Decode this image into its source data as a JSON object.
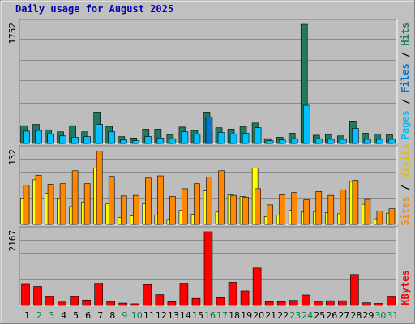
{
  "title": "Daily usage for August 2025",
  "colors": {
    "background": "#c0c0c0",
    "panel": "#bdbdbd",
    "grid": "#8a8a8a",
    "hits": "#1f7a5f",
    "files": "#00c0ff",
    "pages": "#0077cc",
    "visits": "#ffff00",
    "sites": "#ff8800",
    "kbytes": "#ff0000",
    "title": "#0000aa",
    "weekend_label": "#008040"
  },
  "chart_data": [
    {
      "type": "bar",
      "name": "hits-files-pages",
      "ylabel": "1752",
      "ymax": 1752,
      "legend": [
        "Pages",
        "Files",
        "Hits"
      ],
      "categories": [
        "1",
        "2",
        "3",
        "4",
        "5",
        "6",
        "7",
        "8",
        "9",
        "10",
        "11",
        "12",
        "13",
        "14",
        "15",
        "16",
        "17",
        "18",
        "19",
        "20",
        "21",
        "22",
        "23",
        "24",
        "25",
        "26",
        "27",
        "28",
        "29",
        "30",
        "31"
      ],
      "series": [
        {
          "name": "Hits",
          "values": [
            260,
            280,
            200,
            170,
            260,
            170,
            460,
            250,
            100,
            80,
            210,
            210,
            130,
            240,
            190,
            460,
            230,
            210,
            250,
            300,
            70,
            90,
            150,
            1752,
            120,
            130,
            110,
            330,
            150,
            140,
            130
          ]
        },
        {
          "name": "Files",
          "values": [
            180,
            190,
            140,
            110,
            90,
            100,
            280,
            170,
            50,
            40,
            100,
            80,
            70,
            170,
            140,
            200,
            160,
            140,
            150,
            230,
            40,
            50,
            70,
            560,
            70,
            60,
            60,
            220,
            60,
            60,
            60
          ]
        },
        {
          "name": "Pages",
          "values": [
            0,
            0,
            0,
            0,
            0,
            0,
            0,
            0,
            0,
            0,
            0,
            0,
            0,
            0,
            0,
            390,
            0,
            0,
            0,
            0,
            0,
            0,
            0,
            0,
            0,
            0,
            0,
            0,
            0,
            0,
            0
          ]
        }
      ]
    },
    {
      "type": "bar",
      "name": "visits-sites",
      "ylabel": "132",
      "ymax": 132,
      "legend": [
        "Sites",
        "Visits"
      ],
      "categories": [
        "1",
        "2",
        "3",
        "4",
        "5",
        "6",
        "7",
        "8",
        "9",
        "10",
        "11",
        "12",
        "13",
        "14",
        "15",
        "16",
        "17",
        "18",
        "19",
        "20",
        "21",
        "22",
        "23",
        "24",
        "25",
        "26",
        "27",
        "28",
        "29",
        "30",
        "31"
      ],
      "series": [
        {
          "name": "Visits",
          "values": [
            46,
            80,
            56,
            46,
            32,
            40,
            101,
            37,
            12,
            15,
            37,
            17,
            9,
            25,
            18,
            60,
            22,
            53,
            50,
            101,
            14,
            17,
            25,
            22,
            23,
            21,
            19,
            77,
            36,
            10,
            20
          ]
        },
        {
          "name": "Sites",
          "values": [
            70,
            88,
            72,
            73,
            96,
            73,
            131,
            86,
            51,
            52,
            83,
            87,
            50,
            64,
            73,
            85,
            96,
            52,
            49,
            64,
            35,
            53,
            57,
            44,
            59,
            52,
            62,
            79,
            45,
            24,
            28
          ]
        }
      ]
    },
    {
      "type": "bar",
      "name": "kbytes",
      "ylabel": "2167",
      "ymax": 2167,
      "legend": [
        "KBytes"
      ],
      "categories": [
        "1",
        "2",
        "3",
        "4",
        "5",
        "6",
        "7",
        "8",
        "9",
        "10",
        "11",
        "12",
        "13",
        "14",
        "15",
        "16",
        "17",
        "18",
        "19",
        "20",
        "21",
        "22",
        "23",
        "24",
        "25",
        "26",
        "27",
        "28",
        "29",
        "30",
        "31"
      ],
      "series": [
        {
          "name": "KBytes",
          "values": [
            620,
            560,
            260,
            100,
            260,
            160,
            650,
            120,
            70,
            50,
            610,
            320,
            110,
            630,
            210,
            2167,
            230,
            680,
            430,
            1100,
            110,
            110,
            150,
            310,
            120,
            140,
            140,
            910,
            80,
            60,
            250
          ]
        }
      ]
    }
  ],
  "x_labels": [
    "1",
    "2",
    "3",
    "4",
    "5",
    "6",
    "7",
    "8",
    "9",
    "10",
    "11",
    "12",
    "13",
    "14",
    "15",
    "16",
    "17",
    "18",
    "19",
    "20",
    "21",
    "22",
    "23",
    "24",
    "25",
    "26",
    "27",
    "28",
    "29",
    "30",
    "31"
  ],
  "weekend_days": [
    2,
    3,
    9,
    10,
    16,
    17,
    23,
    24,
    30,
    31
  ]
}
